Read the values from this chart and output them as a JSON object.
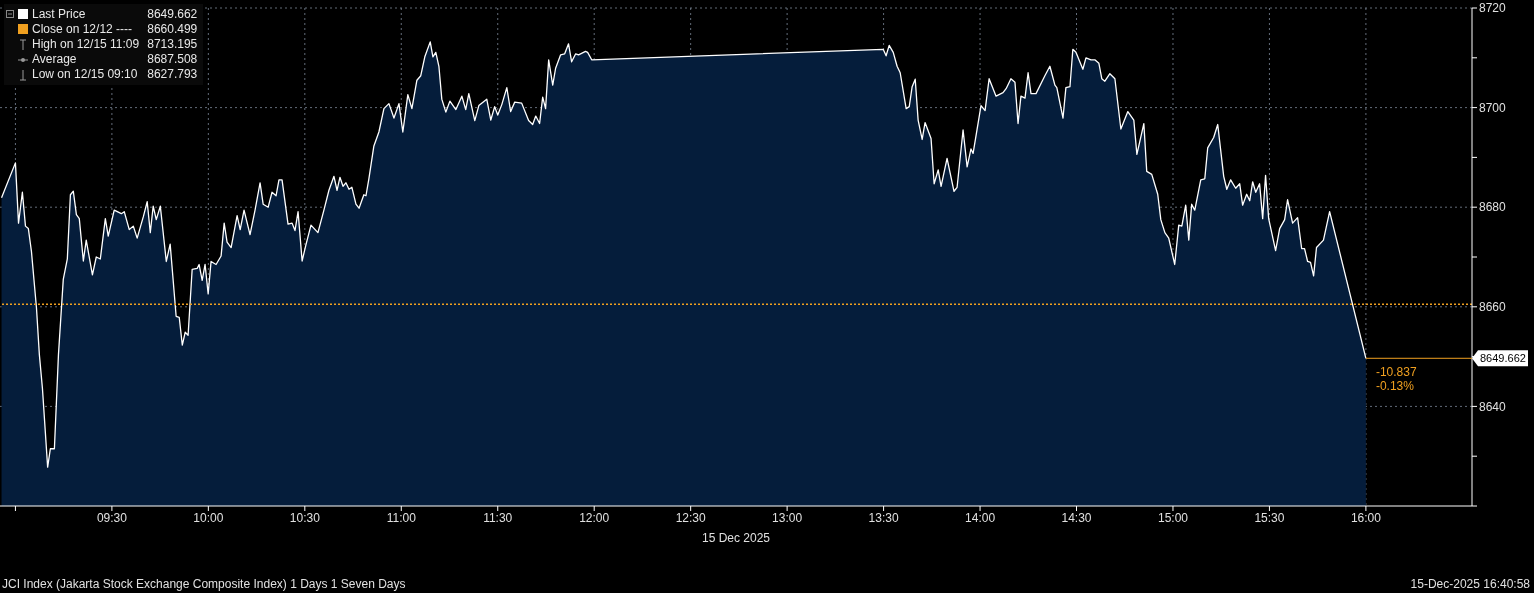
{
  "chart_data": {
    "type": "area",
    "xlabel": "15 Dec 2025",
    "xlim": [
      8.92,
      16.55
    ],
    "xticks": [
      {
        "value": 9,
        "label": null
      },
      {
        "value": 9.5,
        "label": "09:30"
      },
      {
        "value": 10,
        "label": "10:00"
      },
      {
        "value": 10.5,
        "label": "10:30"
      },
      {
        "value": 11,
        "label": "11:00"
      },
      {
        "value": 11.5,
        "label": "11:30"
      },
      {
        "value": 12,
        "label": "12:00"
      },
      {
        "value": 12.5,
        "label": "12:30"
      },
      {
        "value": 13,
        "label": "13:00"
      },
      {
        "value": 13.5,
        "label": "13:30"
      },
      {
        "value": 14,
        "label": "14:00"
      },
      {
        "value": 14.5,
        "label": "14:30"
      },
      {
        "value": 15,
        "label": "15:00"
      },
      {
        "value": 15.5,
        "label": "15:30"
      },
      {
        "value": 16,
        "label": "16:00"
      }
    ],
    "ylim": [
      8620,
      8720
    ],
    "yticks": [
      {
        "value": 8620,
        "label": null
      },
      {
        "value": 8630,
        "label": null
      },
      8640,
      {
        "value": 8650,
        "label": null
      },
      8660,
      {
        "value": 8670,
        "label": null
      },
      8680,
      {
        "value": 8690,
        "label": null
      },
      8700,
      {
        "value": 8710,
        "label": null
      },
      8720
    ],
    "grid": true,
    "legend": "top left",
    "marker": "none",
    "line_style": "solid",
    "x": [
      8.928,
      9.0,
      9.016,
      9.036,
      9.052,
      9.067,
      9.083,
      9.109,
      9.124,
      9.14,
      9.167,
      9.181,
      9.202,
      9.223,
      9.248,
      9.269,
      9.285,
      9.3,
      9.316,
      9.331,
      9.352,
      9.367,
      9.399,
      9.419,
      9.44,
      9.466,
      9.481,
      9.512,
      9.549,
      9.564,
      9.59,
      9.611,
      9.631,
      9.663,
      9.683,
      9.699,
      9.714,
      9.73,
      9.751,
      9.782,
      9.802,
      9.833,
      9.849,
      9.865,
      9.88,
      9.895,
      9.916,
      9.942,
      9.952,
      9.968,
      9.983,
      9.999,
      10.014,
      10.04,
      10.066,
      10.082,
      10.097,
      10.118,
      10.149,
      10.165,
      10.185,
      10.216,
      10.242,
      10.268,
      10.284,
      10.31,
      10.33,
      10.351,
      10.366,
      10.382,
      10.413,
      10.434,
      10.449,
      10.465,
      10.486,
      10.506,
      10.532,
      10.568,
      10.599,
      10.625,
      10.651,
      10.667,
      10.682,
      10.698,
      10.713,
      10.729,
      10.744,
      10.765,
      10.781,
      10.806,
      10.817,
      10.832,
      10.858,
      10.884,
      10.91,
      10.936,
      10.962,
      10.988,
      11.008,
      11.034,
      11.055,
      11.081,
      11.101,
      11.122,
      11.15,
      11.164,
      11.179,
      11.195,
      11.21,
      11.231,
      11.252,
      11.283,
      11.314,
      11.334,
      11.35,
      11.381,
      11.402,
      11.443,
      11.464,
      11.484,
      11.5,
      11.521,
      11.547,
      11.567,
      11.588,
      11.624,
      11.66,
      11.681,
      11.697,
      11.717,
      11.733,
      11.748,
      11.764,
      11.785,
      11.8,
      11.826,
      11.847,
      11.867,
      11.883,
      11.904,
      11.919,
      11.955,
      11.966,
      11.987,
      13.498,
      13.513,
      13.529,
      13.55,
      13.57,
      13.586,
      13.617,
      13.633,
      13.648,
      13.664,
      13.679,
      13.7,
      13.715,
      13.746,
      13.762,
      13.783,
      13.798,
      13.829,
      13.865,
      13.881,
      13.912,
      13.933,
      13.953,
      13.964,
      14.005,
      14.026,
      14.047,
      14.083,
      14.119,
      14.135,
      14.16,
      14.181,
      14.197,
      14.212,
      14.233,
      14.249,
      14.264,
      14.29,
      14.336,
      14.362,
      14.388,
      14.398,
      14.43,
      14.445,
      14.466,
      14.481,
      14.497,
      14.533,
      14.549,
      14.575,
      14.595,
      14.616,
      14.631,
      14.647,
      14.673,
      14.699,
      14.73,
      14.766,
      14.797,
      14.813,
      14.849,
      14.864,
      14.89,
      14.921,
      14.937,
      14.958,
      14.978,
      15.009,
      15.03,
      15.046,
      15.066,
      15.082,
      15.097,
      15.113,
      15.144,
      15.165,
      15.18,
      15.211,
      15.232,
      15.263,
      15.279,
      15.299,
      15.325,
      15.346,
      15.361,
      15.382,
      15.398,
      15.413,
      15.429,
      15.449,
      15.465,
      15.48,
      15.496,
      15.532,
      15.553,
      15.579,
      15.594,
      15.62,
      15.646,
      15.667,
      15.682,
      15.698,
      15.713,
      15.729,
      15.744,
      15.78,
      15.812,
      16.0
    ],
    "series": [
      {
        "name": "Last Price",
        "color": "#ffffff",
        "values": [
          8681.9,
          8688.9,
          8676.8,
          8683.0,
          8676.2,
          8675.7,
          8671.1,
          8659.8,
          8650.4,
          8643.6,
          8627.8,
          8631.5,
          8631.5,
          8650.4,
          8665.5,
          8669.6,
          8682.5,
          8683.2,
          8678.5,
          8677.7,
          8669.2,
          8673.4,
          8666.4,
          8670.0,
          8669.6,
          8677.7,
          8674.2,
          8679.4,
          8678.7,
          8679.1,
          8675.5,
          8676.2,
          8673.8,
          8678.1,
          8681.1,
          8674.9,
          8680.2,
          8677.5,
          8680.2,
          8669.1,
          8672.6,
          8658.1,
          8657.9,
          8652.3,
          8654.9,
          8654.3,
          8667.5,
          8667.7,
          8668.5,
          8665.3,
          8668.5,
          8662.6,
          8669.1,
          8668.5,
          8670.2,
          8676.8,
          8673.0,
          8671.9,
          8678.3,
          8675.5,
          8679.4,
          8674.5,
          8679.4,
          8684.9,
          8680.6,
          8680.0,
          8683.0,
          8682.3,
          8685.5,
          8685.5,
          8676.6,
          8676.8,
          8675.3,
          8679.1,
          8669.2,
          8672.5,
          8676.4,
          8674.9,
          8679.4,
          8683.4,
          8686.2,
          8683.4,
          8686.0,
          8684.2,
          8684.9,
          8683.6,
          8684.0,
          8680.6,
          8679.8,
          8682.5,
          8682.3,
          8685.7,
          8692.3,
          8695.1,
          8699.8,
          8700.8,
          8697.9,
          8700.8,
          8695.1,
          8702.6,
          8699.8,
          8705.5,
          8706.4,
          8710.2,
          8713.2,
          8710.2,
          8711.1,
          8708.3,
          8701.7,
          8699.1,
          8701.3,
          8699.6,
          8702.3,
          8699.6,
          8702.8,
          8697.4,
          8700.4,
          8701.7,
          8697.5,
          8700.2,
          8698.5,
          8700.6,
          8704.0,
          8699.2,
          8701.1,
          8700.9,
          8697.4,
          8696.6,
          8698.3,
          8696.8,
          8702.1,
          8699.8,
          8709.6,
          8704.5,
          8707.9,
          8710.6,
          8710.8,
          8712.8,
          8709.2,
          8710.8,
          8710.6,
          8711.3,
          8711.1,
          8709.6,
          8711.7,
          8710.4,
          8712.5,
          8711.1,
          8708.3,
          8707.0,
          8699.8,
          8700.2,
          8704.2,
          8705.7,
          8697.5,
          8693.6,
          8697.0,
          8693.8,
          8684.7,
          8687.5,
          8684.2,
          8689.8,
          8683.2,
          8684.0,
          8695.5,
          8688.1,
          8691.7,
          8690.8,
          8700.4,
          8699.4,
          8705.8,
          8702.3,
          8703.0,
          8703.8,
          8705.8,
          8705.1,
          8696.8,
          8702.3,
          8701.9,
          8707.0,
          8702.8,
          8702.8,
          8706.4,
          8708.3,
          8704.5,
          8704.0,
          8697.9,
          8704.0,
          8704.2,
          8711.7,
          8711.1,
          8707.7,
          8710.0,
          8709.6,
          8709.6,
          8708.9,
          8705.8,
          8705.3,
          8706.8,
          8705.8,
          8695.7,
          8699.2,
          8697.5,
          8690.6,
          8696.8,
          8687.2,
          8686.6,
          8682.6,
          8677.5,
          8674.9,
          8673.8,
          8668.5,
          8676.4,
          8676.2,
          8680.4,
          8673.4,
          8680.6,
          8679.4,
          8685.5,
          8685.7,
          8691.9,
          8694.0,
          8696.6,
          8686.2,
          8683.6,
          8685.5,
          8683.8,
          8684.7,
          8680.4,
          8682.6,
          8681.3,
          8685.1,
          8683.0,
          8684.7,
          8677.7,
          8686.4,
          8677.7,
          8671.3,
          8675.7,
          8677.5,
          8681.5,
          8676.8,
          8677.9,
          8671.7,
          8671.7,
          8669.1,
          8668.9,
          8666.2,
          8671.9,
          8673.4,
          8679.1,
          8649.662
        ]
      }
    ],
    "ref_lines": [
      {
        "axis": "y",
        "value": 8660.499,
        "label": "Close on 12/12 ---- 8660.499",
        "color": "#f0a020",
        "line_style": "dotted"
      }
    ],
    "annotations": [
      "High on 12/15 11:09 8713.195",
      "Average 8687.508",
      "Low on 12/15 09:10 8627.793",
      "JCI Index (Jakarta Stock Exchange Composite Index) 1 Days 1 Seven Days",
      "15-Dec-2025 16:40:58",
      "8649.662",
      {
        "text": "-10.837",
        "x": 16.0,
        "y": 8649.662
      },
      {
        "text": "-0.13%",
        "x": 16.0,
        "y": 8649.662
      }
    ]
  }
}
